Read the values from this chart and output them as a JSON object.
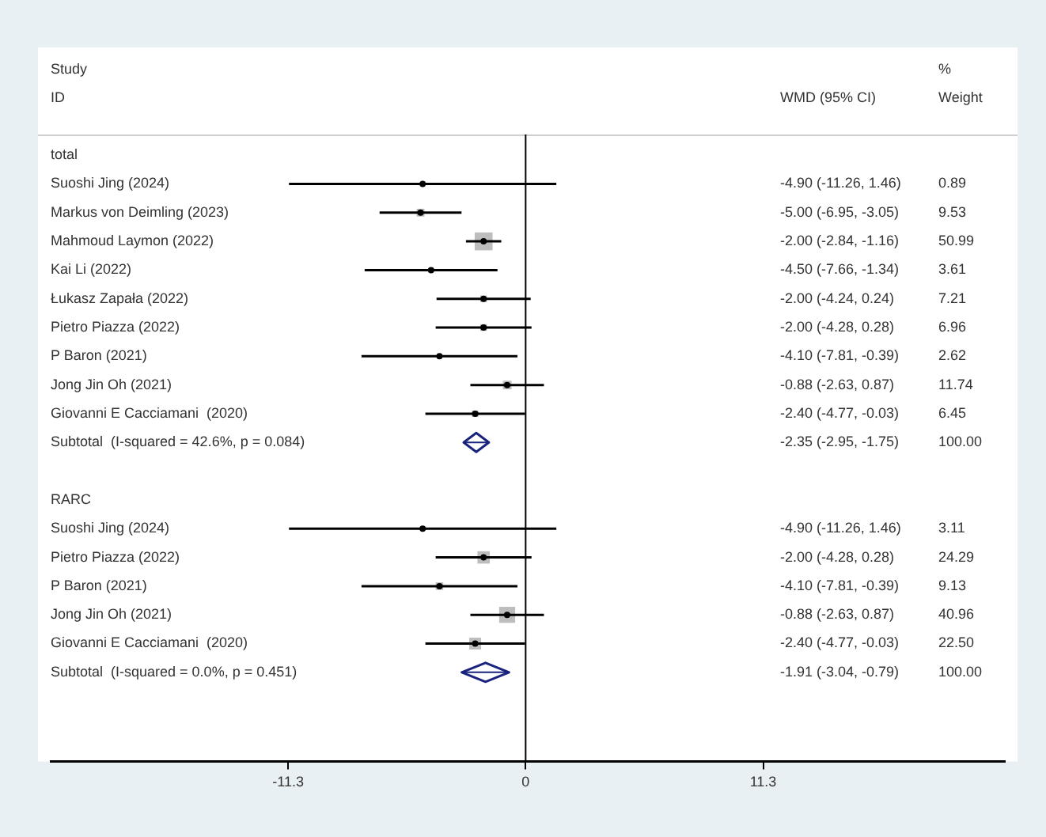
{
  "chart_data": {
    "type": "scatter",
    "orientation": "horizontal",
    "legend": false,
    "grid": false,
    "categories": [
      "total",
      "Suoshi Jing (2024)",
      "Markus von Deimling (2023)",
      "Mahmoud Laymon (2022)",
      "Kai Li (2022)",
      "Łukasz Zapała (2022)",
      "Pietro Piazza (2022)",
      "P Baron (2021)",
      "Jong Jin Oh (2021)",
      "Giovanni E Cacciamani  (2020)",
      "Subtotal  (I-squared = 42.6%, p = 0.084)",
      null,
      "RARC",
      "Suoshi Jing (2024)",
      "Pietro Piazza (2022)",
      "P Baron (2021)",
      "Jong Jin Oh (2021)",
      "Giovanni E Cacciamani  (2020)",
      "Subtotal  (I-squared = 0.0%, p = 0.451)"
    ],
    "xlim": [
      -22.6,
      22.8
    ],
    "xticks": [
      -11.3,
      0,
      11.3
    ],
    "series": [
      {
        "type": "bubble",
        "marker": "square",
        "color": "#bdbdbd",
        "values": [
          null,
          null,
          -5.0,
          -2.0,
          null,
          -2.0,
          -2.0,
          null,
          -0.88,
          -2.4,
          null,
          null,
          null,
          null,
          -2.0,
          -4.1,
          -0.88,
          -2.4,
          null
        ],
        "sizes": [
          null,
          null,
          0.19,
          1,
          null,
          0.14,
          0.14,
          null,
          0.23,
          0.13,
          null,
          null,
          null,
          null,
          0.48,
          0.18,
          0.8,
          0.44,
          null
        ]
      },
      {
        "type": "scatter",
        "marker": "circle",
        "color": "#000000",
        "values": [
          null,
          -4.9,
          -5.0,
          -2.0,
          -4.5,
          -2.0,
          -2.0,
          -4.1,
          -0.88,
          -2.4,
          null,
          null,
          null,
          -4.9,
          -2.0,
          -4.1,
          -0.88,
          -2.4,
          null
        ],
        "errors": [
          null,
          [
            -11.26,
            1.46
          ],
          [
            -6.95,
            -3.05
          ],
          [
            -2.84,
            -1.16
          ],
          [
            -7.66,
            -1.34
          ],
          [
            -4.24,
            0.24
          ],
          [
            -4.28,
            0.28
          ],
          [
            -7.81,
            -0.39
          ],
          [
            -2.63,
            0.87
          ],
          [
            -4.77,
            -0.03
          ],
          null,
          null,
          null,
          [
            -11.26,
            1.46
          ],
          [
            -4.28,
            0.28
          ],
          [
            -7.81,
            -0.39
          ],
          [
            -2.63,
            0.87
          ],
          [
            -4.77,
            -0.03
          ],
          null
        ]
      },
      {
        "type": "scatter",
        "marker": "diamond",
        "color": "#1a237e",
        "values": [
          null,
          null,
          null,
          null,
          null,
          null,
          null,
          null,
          null,
          null,
          -2.35,
          null,
          null,
          null,
          null,
          null,
          null,
          null,
          -1.91
        ],
        "errors": [
          null,
          null,
          null,
          null,
          null,
          null,
          null,
          null,
          null,
          null,
          [
            -2.95,
            -1.75
          ],
          null,
          null,
          null,
          null,
          null,
          null,
          null,
          [
            -3.04,
            -0.79
          ]
        ]
      }
    ],
    "ref_lines": [
      {
        "axis": "x",
        "value": 0,
        "color": "#000000"
      }
    ],
    "annotations": [
      "Study",
      "ID",
      "WMD (95% CI)",
      "%",
      "Weight",
      "-4.90 (-11.26, 1.46)",
      "0.89",
      "-5.00 (-6.95, -3.05)",
      "9.53",
      "-2.00 (-2.84, -1.16)",
      "50.99",
      "-4.50 (-7.66, -1.34)",
      "3.61",
      "-2.00 (-4.24, 0.24)",
      "7.21",
      "-2.00 (-4.28, 0.28)",
      "6.96",
      "-4.10 (-7.81, -0.39)",
      "2.62",
      "-0.88 (-2.63, 0.87)",
      "11.74",
      "-2.40 (-4.77, -0.03)",
      "6.45",
      "-2.35 (-2.95, -1.75)",
      "100.00",
      "-4.90 (-11.26, 1.46)",
      "3.11",
      "-2.00 (-4.28, 0.28)",
      "24.29",
      "-4.10 (-7.81, -0.39)",
      "9.13",
      "-0.88 (-2.63, 0.87)",
      "40.96",
      "-2.40 (-4.77, -0.03)",
      "22.50",
      "-1.91 (-3.04, -0.79)",
      "100.00"
    ]
  }
}
